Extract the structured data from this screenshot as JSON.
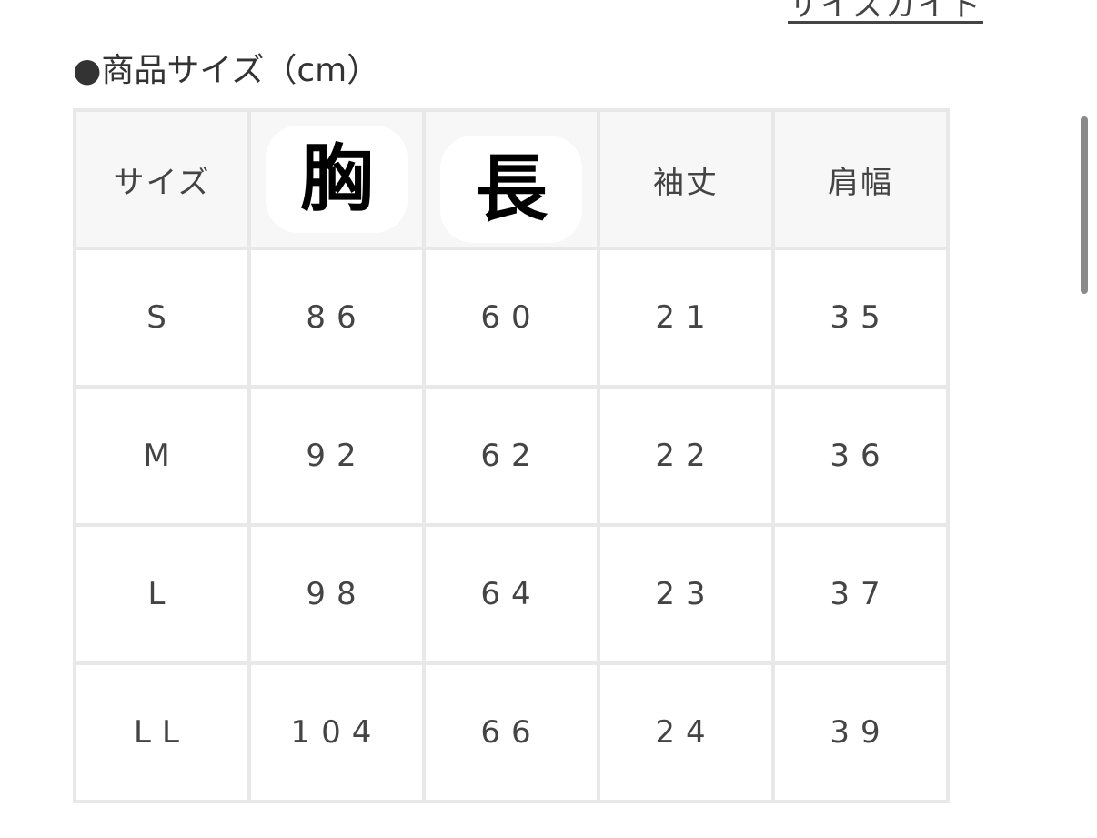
{
  "size_guide_link": "サイズガイド",
  "title": "●商品サイズ（cm）",
  "table": {
    "headers": [
      "サイズ",
      "胸",
      "長",
      "袖丈",
      "肩幅"
    ],
    "rows": [
      [
        "S",
        "86",
        "60",
        "21",
        "35"
      ],
      [
        "M",
        "92",
        "62",
        "22",
        "36"
      ],
      [
        "L",
        "98",
        "64",
        "23",
        "37"
      ],
      [
        "LL",
        "104",
        "66",
        "24",
        "39"
      ]
    ]
  }
}
